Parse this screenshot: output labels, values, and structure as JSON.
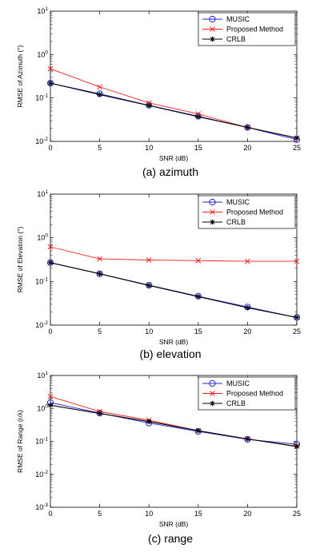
{
  "chart_data": [
    {
      "type": "line",
      "caption": "(a)  azimuth",
      "xlabel": "SNR (dB)",
      "ylabel": "RMSE of Azimuth (°)",
      "yscale": "log",
      "xlim": [
        0,
        25
      ],
      "ylim": [
        0.01,
        10
      ],
      "x": [
        0,
        5,
        10,
        15,
        20,
        25
      ],
      "xticks": [
        "0",
        "5",
        "10",
        "15",
        "20",
        "25"
      ],
      "series": [
        {
          "name": "MUSIC",
          "color": "#2222dd",
          "marker": "circle",
          "values": [
            0.22,
            0.125,
            0.068,
            0.038,
            0.021,
            0.011
          ]
        },
        {
          "name": "Proposed Method",
          "color": "#ee2222",
          "marker": "x",
          "values": [
            0.47,
            0.18,
            0.077,
            0.043,
            0.021,
            0.012
          ]
        },
        {
          "name": "CRLB",
          "color": "#000000",
          "marker": "star",
          "values": [
            0.22,
            0.12,
            0.067,
            0.037,
            0.021,
            0.012
          ]
        }
      ],
      "legend": "top-right"
    },
    {
      "type": "line",
      "caption": "(b)  elevation",
      "xlabel": "SNR (dB)",
      "ylabel": "RMSE of Elevation (°)",
      "yscale": "log",
      "xlim": [
        0,
        25
      ],
      "ylim": [
        0.01,
        10
      ],
      "x": [
        0,
        5,
        10,
        15,
        20,
        25
      ],
      "xticks": [
        "0",
        "5",
        "10",
        "15",
        "20",
        "25"
      ],
      "series": [
        {
          "name": "MUSIC",
          "color": "#2222dd",
          "marker": "circle",
          "values": [
            0.27,
            0.15,
            0.082,
            0.046,
            0.026,
            0.015
          ]
        },
        {
          "name": "Proposed Method",
          "color": "#ee2222",
          "marker": "x",
          "values": [
            0.62,
            0.33,
            0.31,
            0.3,
            0.29,
            0.29
          ]
        },
        {
          "name": "CRLB",
          "color": "#000000",
          "marker": "star",
          "values": [
            0.27,
            0.15,
            0.081,
            0.045,
            0.025,
            0.015
          ]
        }
      ],
      "legend": "top-right"
    },
    {
      "type": "line",
      "caption": "(c)  range",
      "xlabel": "SNR (dB)",
      "ylabel": "RMSE of Range (r/λ)",
      "yscale": "log",
      "xlim": [
        0,
        25
      ],
      "ylim": [
        0.001,
        10
      ],
      "x": [
        0,
        5,
        10,
        15,
        20,
        25
      ],
      "xticks": [
        "0",
        "5",
        "10",
        "15",
        "20",
        "25"
      ],
      "series": [
        {
          "name": "MUSIC",
          "color": "#2222dd",
          "marker": "circle",
          "values": [
            1.5,
            0.72,
            0.36,
            0.2,
            0.115,
            0.082
          ]
        },
        {
          "name": "Proposed Method",
          "color": "#ee2222",
          "marker": "x",
          "values": [
            2.3,
            0.8,
            0.44,
            0.21,
            0.118,
            0.072
          ]
        },
        {
          "name": "CRLB",
          "color": "#000000",
          "marker": "star",
          "values": [
            1.25,
            0.7,
            0.4,
            0.21,
            0.118,
            0.07
          ]
        }
      ],
      "legend": "top-right"
    }
  ]
}
